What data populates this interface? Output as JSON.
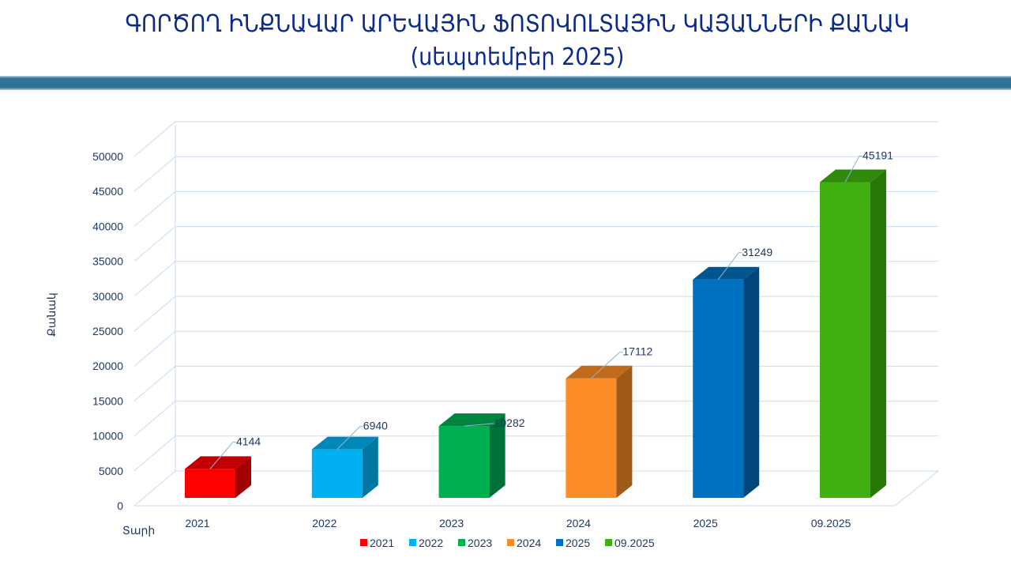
{
  "title_line1": "ԳՈՐԾՈՂ ԻՆՔՆԱՎԱՐ ԱՐԵՎԱՅԻՆ ՖՈՏՈՎՈԼՏԱՅԻՆ ԿԱՅԱՆՆԵՐԻ ՔԱՆԱԿ",
  "title_line2": "(սեպտեմբեր 2025)",
  "chart_data": {
    "type": "bar",
    "style": "3d-column",
    "categories": [
      "2021",
      "2022",
      "2023",
      "2024",
      "2025",
      "09.2025"
    ],
    "values": [
      4144,
      6940,
      10282,
      17112,
      31249,
      45191
    ],
    "colors": [
      "#ff0000",
      "#00b0f0",
      "#00b050",
      "#fb8c28",
      "#0070c0",
      "#40b010"
    ],
    "side_colors": [
      "#a30000",
      "#0076a3",
      "#00703a",
      "#a05a18",
      "#00467a",
      "#287808"
    ],
    "top_colors": [
      "#c00000",
      "#0088bb",
      "#00853f",
      "#c06a1c",
      "#00558f",
      "#2f8a0c"
    ],
    "xlabel": "Տարի",
    "ylabel": "Քանակ",
    "ylim": [
      0,
      50000
    ],
    "yticks": [
      0,
      5000,
      10000,
      15000,
      20000,
      25000,
      30000,
      35000,
      40000,
      45000,
      50000
    ],
    "grid": true,
    "legend_placement": "bottom",
    "data_labels": true
  }
}
